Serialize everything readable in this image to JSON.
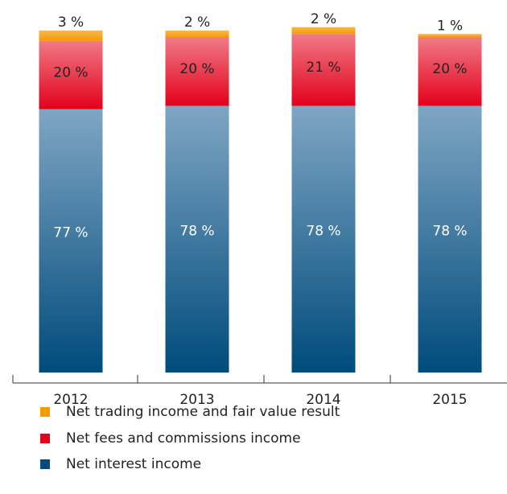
{
  "chart_data": {
    "type": "bar",
    "stacked": true,
    "categories": [
      "2012",
      "2013",
      "2014",
      "2015"
    ],
    "ylim": [
      0,
      100
    ],
    "series": [
      {
        "name": "Net interest income",
        "color": "#004b7c",
        "values": [
          77,
          78,
          78,
          78
        ],
        "value_labels": [
          "77 %",
          "78 %",
          "78 %",
          "78 %"
        ]
      },
      {
        "name": "Net fees and commissions income",
        "color": "#e3001b",
        "values": [
          20,
          20,
          21,
          20
        ],
        "value_labels": [
          "20 %",
          "20 %",
          "21 %",
          "20 %"
        ]
      },
      {
        "name": "Net trading income and fair value result",
        "color": "#f59a00",
        "values": [
          3,
          2,
          2,
          1
        ],
        "value_labels": [
          "3 %",
          "2 %",
          "2 %",
          "1 %"
        ]
      }
    ]
  }
}
